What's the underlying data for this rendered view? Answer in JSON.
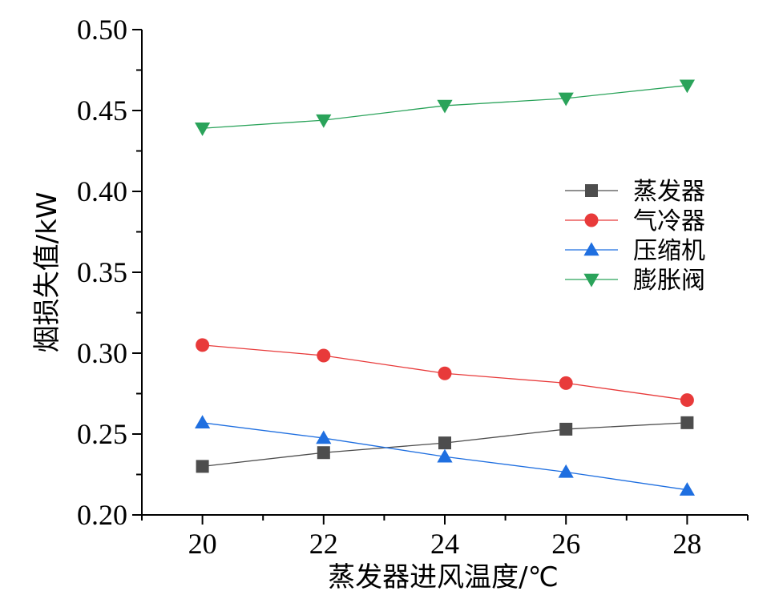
{
  "chart_data": {
    "type": "line",
    "xlabel": "蒸发器进风温度/℃",
    "ylabel": "烟损失值/kW",
    "x": [
      20,
      22,
      24,
      26,
      28
    ],
    "xlim": [
      19,
      29
    ],
    "ylim": [
      0.2,
      0.5
    ],
    "x_ticks": [
      "20",
      "22",
      "24",
      "26",
      "28"
    ],
    "y_ticks": [
      "0.20",
      "0.25",
      "0.30",
      "0.35",
      "0.40",
      "0.45",
      "0.50"
    ],
    "grid": false,
    "legend_position": "right",
    "series": [
      {
        "name": "蒸发器",
        "marker": "square",
        "color": "#4d4d4d",
        "values": [
          0.23,
          0.2385,
          0.2445,
          0.253,
          0.257
        ]
      },
      {
        "name": "气冷器",
        "marker": "circle",
        "color": "#e83a3a",
        "values": [
          0.305,
          0.2985,
          0.2875,
          0.2815,
          0.271
        ]
      },
      {
        "name": "压缩机",
        "marker": "triangle-up",
        "color": "#1f6fe0",
        "values": [
          0.257,
          0.2475,
          0.236,
          0.2265,
          0.2155
        ]
      },
      {
        "name": "膨胀阀",
        "marker": "triangle-down",
        "color": "#2aa35a",
        "values": [
          0.439,
          0.444,
          0.453,
          0.4575,
          0.4655
        ]
      }
    ]
  }
}
